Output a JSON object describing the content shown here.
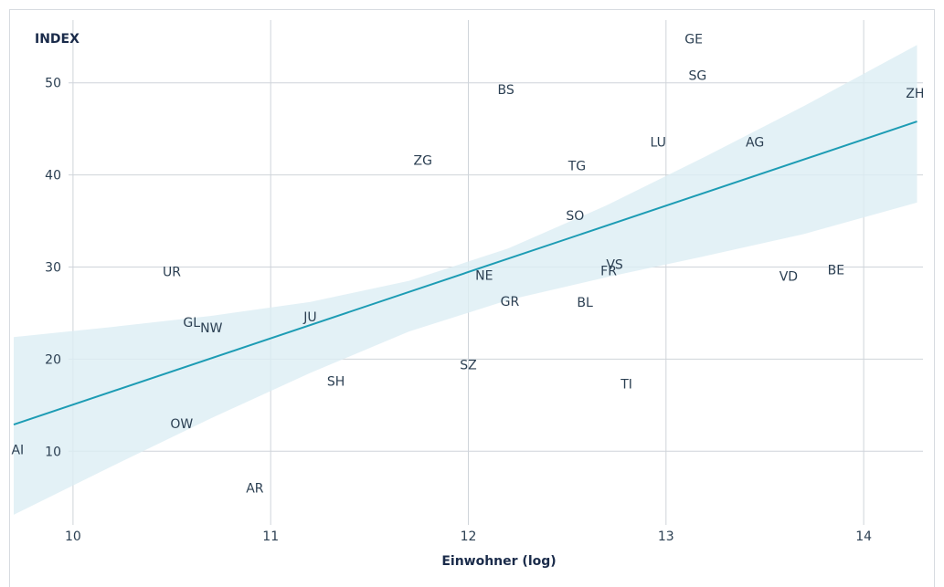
{
  "chart_data": {
    "type": "scatter",
    "ylabel": "INDEX",
    "xlabel": "Einwohner (log)",
    "xlim": [
      9.7,
      14.3
    ],
    "ylim": [
      2,
      58
    ],
    "xticks": [
      10,
      11,
      12,
      13,
      14
    ],
    "yticks": [
      10,
      20,
      30,
      40,
      50
    ],
    "grid": true,
    "colors": {
      "trend": "#1d9cb4",
      "band": "#dcedf4",
      "grid": "#cfd4da",
      "text": "#2b3f52"
    },
    "points": [
      {
        "label": "AI",
        "x": 9.72,
        "y": 10.2
      },
      {
        "label": "AR",
        "x": 10.92,
        "y": 6.0
      },
      {
        "label": "OW",
        "x": 10.55,
        "y": 13.0
      },
      {
        "label": "UR",
        "x": 10.5,
        "y": 29.5
      },
      {
        "label": "GL",
        "x": 10.6,
        "y": 24.0
      },
      {
        "label": "NW",
        "x": 10.7,
        "y": 23.4
      },
      {
        "label": "JU",
        "x": 11.2,
        "y": 24.6
      },
      {
        "label": "SH",
        "x": 11.33,
        "y": 17.6
      },
      {
        "label": "ZG",
        "x": 11.77,
        "y": 41.6
      },
      {
        "label": "SZ",
        "x": 12.0,
        "y": 19.4
      },
      {
        "label": "NE",
        "x": 12.08,
        "y": 29.1
      },
      {
        "label": "BS",
        "x": 12.19,
        "y": 49.3
      },
      {
        "label": "GR",
        "x": 12.21,
        "y": 26.3
      },
      {
        "label": "BL",
        "x": 12.59,
        "y": 26.2
      },
      {
        "label": "TG",
        "x": 12.55,
        "y": 41.0
      },
      {
        "label": "SO",
        "x": 12.54,
        "y": 35.6
      },
      {
        "label": "FR",
        "x": 12.71,
        "y": 29.6
      },
      {
        "label": "VS",
        "x": 12.74,
        "y": 30.3
      },
      {
        "label": "TI",
        "x": 12.8,
        "y": 17.3
      },
      {
        "label": "LU",
        "x": 12.96,
        "y": 43.6
      },
      {
        "label": "GE",
        "x": 13.14,
        "y": 54.8
      },
      {
        "label": "SG",
        "x": 13.16,
        "y": 50.8
      },
      {
        "label": "AG",
        "x": 13.45,
        "y": 43.6
      },
      {
        "label": "VD",
        "x": 13.62,
        "y": 29.0
      },
      {
        "label": "BE",
        "x": 13.86,
        "y": 29.7
      },
      {
        "label": "ZH",
        "x": 14.26,
        "y": 48.9
      }
    ],
    "trend": {
      "x": [
        9.7,
        14.27
      ],
      "y": [
        12.9,
        45.8
      ]
    },
    "confidence_band": {
      "x": [
        9.7,
        10.2,
        10.7,
        11.2,
        11.7,
        12.2,
        12.7,
        13.2,
        13.7,
        14.27
      ],
      "upper": [
        22.4,
        23.5,
        24.7,
        26.2,
        28.5,
        32.0,
        36.7,
        42.0,
        47.5,
        54.1
      ],
      "lower": [
        3.1,
        8.4,
        13.6,
        18.5,
        23.0,
        26.4,
        28.9,
        31.2,
        33.6,
        37.0
      ]
    }
  }
}
